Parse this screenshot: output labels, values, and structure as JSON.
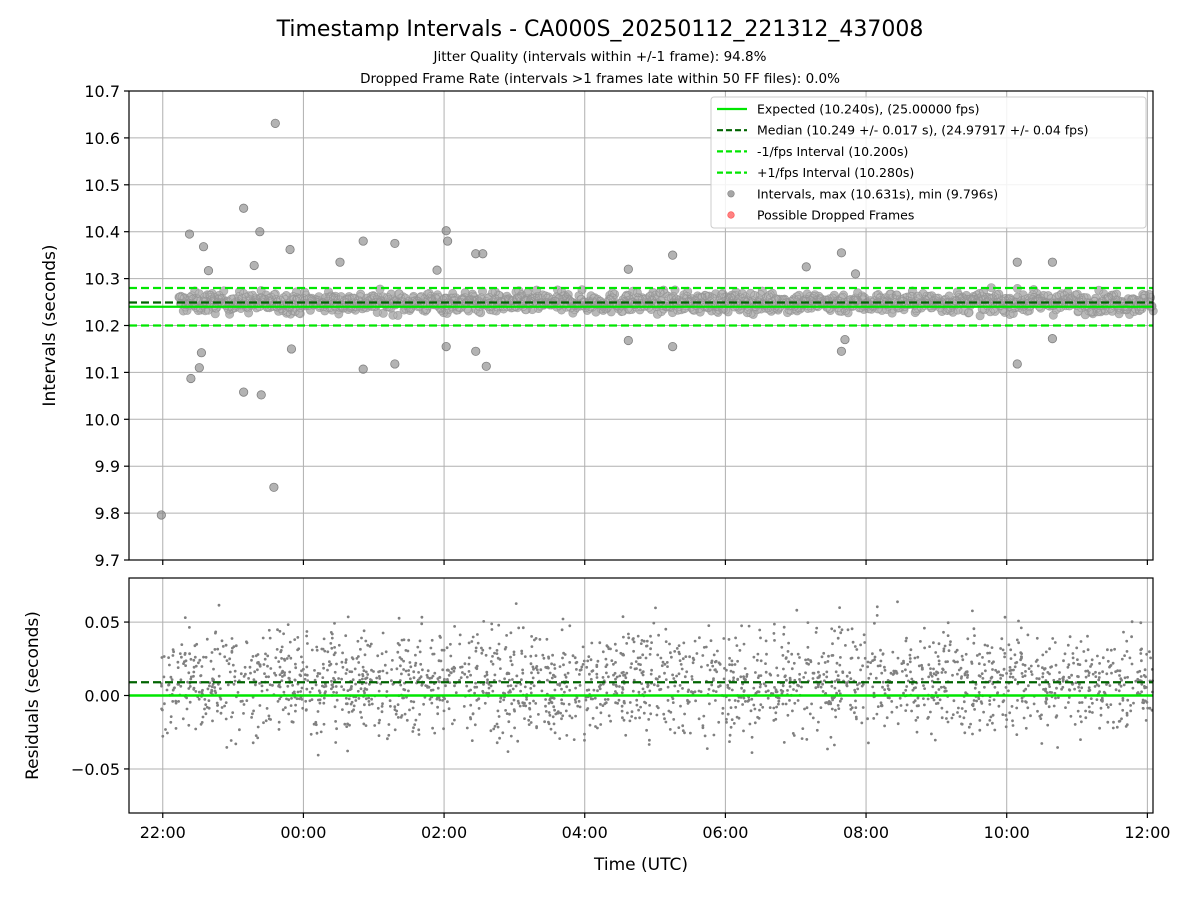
{
  "chart_data": {
    "type": "scatter",
    "title": "Timestamp Intervals - CA000S_20250112_221312_437008",
    "subtitles": [
      "Jitter Quality (intervals within +/-1 frame): 94.8%",
      "Dropped Frame Rate (intervals >1 frames late within 50 FF files): 0.0%"
    ],
    "xlabel": "Time (UTC)",
    "x_ticks": [
      "22:00",
      "00:00",
      "02:00",
      "04:00",
      "06:00",
      "08:00",
      "10:00",
      "12:00"
    ],
    "x_range_hours": [
      -2.48,
      12.08
    ],
    "x_data_range_hours": [
      -2.02,
      12.08
    ],
    "top_panel": {
      "ylabel": "Intervals (seconds)",
      "ylim": [
        9.7,
        10.7
      ],
      "y_ticks": [
        "9.7",
        "9.8",
        "9.9",
        "10.0",
        "10.1",
        "10.2",
        "10.3",
        "10.4",
        "10.5",
        "10.6",
        "10.7"
      ],
      "grid": true,
      "expected": 10.24,
      "median": 10.249,
      "minus_1_fps": 10.2,
      "plus_1_fps": 10.28,
      "outliers": [
        {
          "x": -2.02,
          "y": 9.796
        },
        {
          "x": -0.4,
          "y": 10.631
        },
        {
          "x": -0.42,
          "y": 9.855
        },
        {
          "x": -0.85,
          "y": 10.45
        },
        {
          "x": -0.62,
          "y": 10.4
        },
        {
          "x": -1.62,
          "y": 10.395
        },
        {
          "x": -1.42,
          "y": 10.368
        },
        {
          "x": -0.19,
          "y": 10.362
        },
        {
          "x": 0.52,
          "y": 10.335
        },
        {
          "x": 0.85,
          "y": 10.38
        },
        {
          "x": 1.3,
          "y": 10.375
        },
        {
          "x": 2.03,
          "y": 10.402
        },
        {
          "x": 2.05,
          "y": 10.38
        },
        {
          "x": 2.45,
          "y": 10.353
        },
        {
          "x": 2.55,
          "y": 10.353
        },
        {
          "x": 5.25,
          "y": 10.35
        },
        {
          "x": 7.65,
          "y": 10.355
        },
        {
          "x": 10.15,
          "y": 10.335
        },
        {
          "x": 10.65,
          "y": 10.335
        },
        {
          "x": -0.85,
          "y": 10.058
        },
        {
          "x": -0.6,
          "y": 10.052
        },
        {
          "x": -1.6,
          "y": 10.087
        },
        {
          "x": 0.85,
          "y": 10.107
        },
        {
          "x": 1.3,
          "y": 10.118
        },
        {
          "x": 2.6,
          "y": 10.113
        },
        {
          "x": 10.15,
          "y": 10.118
        },
        {
          "x": -1.45,
          "y": 10.142
        },
        {
          "x": -1.48,
          "y": 10.11
        },
        {
          "x": -0.17,
          "y": 10.15
        },
        {
          "x": 2.03,
          "y": 10.155
        },
        {
          "x": 2.45,
          "y": 10.145
        },
        {
          "x": 5.25,
          "y": 10.155
        },
        {
          "x": 7.65,
          "y": 10.145
        },
        {
          "x": 7.7,
          "y": 10.17
        },
        {
          "x": 4.62,
          "y": 10.168
        },
        {
          "x": 10.65,
          "y": 10.172
        },
        {
          "x": -0.7,
          "y": 10.328
        },
        {
          "x": 7.15,
          "y": 10.325
        },
        {
          "x": 4.62,
          "y": 10.32
        },
        {
          "x": 1.9,
          "y": 10.318
        },
        {
          "x": -1.35,
          "y": 10.317
        },
        {
          "x": 7.85,
          "y": 10.31
        }
      ]
    },
    "bottom_panel": {
      "ylabel": "Residuals (seconds)",
      "ylim": [
        -0.08,
        0.08
      ],
      "y_ticks": [
        "−0.05",
        "0.00",
        "0.05"
      ],
      "y_tick_values": [
        -0.05,
        0.0,
        0.05
      ],
      "grid": true,
      "expected_residual": 0.0,
      "median_residual": 0.009
    },
    "legend": {
      "placement": "upper-right",
      "entries": [
        {
          "label": "Expected (10.240s), (25.00000 fps)",
          "style": "solid-line",
          "color": "#00e600"
        },
        {
          "label": "Median (10.249 +/- 0.017 s), (24.97917 +/- 0.04 fps)",
          "style": "dashed-line",
          "color": "#006400"
        },
        {
          "label": "-1/fps Interval (10.200s)",
          "style": "dashed-line",
          "color": "#00e600"
        },
        {
          "label": "+1/fps Interval (10.280s)",
          "style": "dashed-line",
          "color": "#00e600"
        },
        {
          "label": "Intervals, max (10.631s), min (9.796s)",
          "style": "dot",
          "color": "#808080"
        },
        {
          "label": "Possible Dropped Frames",
          "style": "dot",
          "color": "#ff4d4d"
        }
      ]
    },
    "colors": {
      "points": "#808080",
      "expected": "#00e600",
      "median": "#006400",
      "grid": "#b0b0b0",
      "dropped": "#ff4d4d"
    }
  }
}
